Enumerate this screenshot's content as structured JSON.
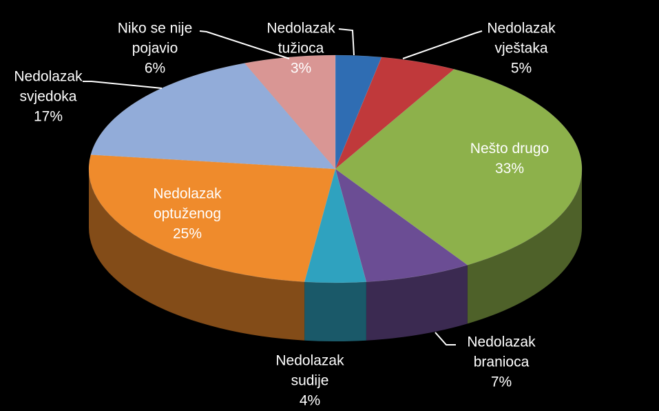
{
  "chart_data": {
    "type": "pie",
    "categories": [
      "Nedolazak tužioca",
      "Nedolazak vještaka",
      "Nešto drugo",
      "Nedolazak branioca",
      "Nedolazak sudije",
      "Nedolazak optuženog",
      "Nedolazak svjedoka",
      "Niko se nije pojavio"
    ],
    "values": [
      3,
      5,
      33,
      7,
      4,
      25,
      17,
      6
    ],
    "value_labels": [
      "3%",
      "5%",
      "33%",
      "7%",
      "4%",
      "25%",
      "17%",
      "6%"
    ],
    "colors": [
      "#2f6db3",
      "#c0393b",
      "#8db14b",
      "#6b4d94",
      "#2fa2bf",
      "#ef8b2c",
      "#92acd9",
      "#d99694"
    ]
  }
}
